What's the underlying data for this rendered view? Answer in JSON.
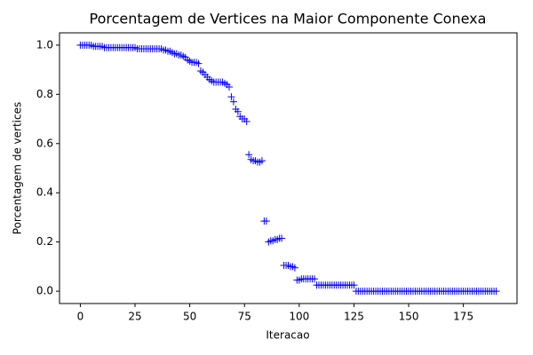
{
  "chart_data": {
    "type": "scatter",
    "title": "Porcentagem de Vertices na Maior Componente Conexa",
    "x_label": "Iteracao",
    "y_label": "Porcentagem de vertices",
    "marker": "+",
    "grid": false,
    "xlim": [
      -9.5,
      199.5
    ],
    "ylim": [
      -0.05,
      1.05
    ],
    "xticks": [
      0,
      25,
      50,
      75,
      100,
      125,
      150,
      175
    ],
    "yticks": [
      {
        "value": 0,
        "label": "0.0"
      },
      {
        "value": 0.2,
        "label": "0.2"
      },
      {
        "value": 0.4,
        "label": "0.4"
      },
      {
        "value": 0.6,
        "label": "0.6"
      },
      {
        "value": 0.8,
        "label": "0.8"
      },
      {
        "value": 1,
        "label": "1.0"
      }
    ],
    "series": [
      {
        "color": "#0000ff",
        "x": [
          0,
          1,
          2,
          3,
          4,
          5,
          6,
          7,
          8,
          9,
          10,
          11,
          12,
          13,
          14,
          15,
          16,
          17,
          18,
          19,
          20,
          21,
          22,
          23,
          24,
          25,
          26,
          27,
          28,
          29,
          30,
          31,
          32,
          33,
          34,
          35,
          36,
          37,
          38,
          39,
          40,
          41,
          42,
          43,
          44,
          45,
          46,
          47,
          48,
          49,
          50,
          51,
          52,
          53,
          54,
          55,
          56,
          57,
          58,
          59,
          60,
          61,
          62,
          63,
          64,
          65,
          66,
          67,
          68,
          69,
          70,
          71,
          72,
          73,
          74,
          75,
          76,
          77,
          78,
          79,
          80,
          81,
          82,
          83,
          84,
          85,
          86,
          87,
          88,
          89,
          90,
          91,
          92,
          93,
          94,
          95,
          96,
          97,
          98,
          99,
          100,
          101,
          102,
          103,
          104,
          105,
          106,
          107,
          108,
          109,
          110,
          111,
          112,
          113,
          114,
          115,
          116,
          117,
          118,
          119,
          120,
          121,
          122,
          123,
          124,
          125,
          126,
          127,
          128,
          129,
          130,
          131,
          132,
          133,
          134,
          135,
          136,
          137,
          138,
          139,
          140,
          141,
          142,
          143,
          144,
          145,
          146,
          147,
          148,
          149,
          150,
          151,
          152,
          153,
          154,
          155,
          156,
          157,
          158,
          159,
          160,
          161,
          162,
          163,
          164,
          165,
          166,
          167,
          168,
          169,
          170,
          171,
          172,
          173,
          174,
          175,
          176,
          177,
          178,
          179,
          180,
          181,
          182,
          183,
          184,
          185,
          186,
          187,
          188,
          189,
          190
        ],
        "values": [
          1,
          1,
          1,
          1,
          1,
          1,
          0.995,
          0.995,
          0.995,
          0.995,
          0.995,
          0.99,
          0.99,
          0.99,
          0.99,
          0.99,
          0.99,
          0.99,
          0.99,
          0.99,
          0.99,
          0.99,
          0.99,
          0.99,
          0.99,
          0.99,
          0.985,
          0.985,
          0.985,
          0.985,
          0.985,
          0.985,
          0.985,
          0.985,
          0.985,
          0.985,
          0.985,
          0.985,
          0.98,
          0.98,
          0.975,
          0.975,
          0.97,
          0.965,
          0.965,
          0.96,
          0.96,
          0.955,
          0.95,
          0.94,
          0.935,
          0.93,
          0.93,
          0.93,
          0.925,
          0.895,
          0.89,
          0.88,
          0.87,
          0.86,
          0.855,
          0.85,
          0.85,
          0.85,
          0.85,
          0.85,
          0.845,
          0.84,
          0.83,
          0.79,
          0.77,
          0.74,
          0.73,
          0.71,
          0.7,
          0.7,
          0.69,
          0.555,
          0.535,
          0.53,
          0.53,
          0.525,
          0.525,
          0.53,
          0.285,
          0.285,
          0.2,
          0.205,
          0.205,
          0.21,
          0.21,
          0.215,
          0.215,
          0.105,
          0.105,
          0.105,
          0.1,
          0.1,
          0.095,
          0.045,
          0.045,
          0.05,
          0.05,
          0.05,
          0.05,
          0.05,
          0.05,
          0.05,
          0.025,
          0.025,
          0.025,
          0.025,
          0.025,
          0.025,
          0.025,
          0.025,
          0.025,
          0.025,
          0.025,
          0.025,
          0.025,
          0.025,
          0.025,
          0.025,
          0.025,
          0.025,
          0,
          0,
          0,
          0,
          0,
          0,
          0,
          0,
          0,
          0,
          0,
          0,
          0,
          0,
          0,
          0,
          0,
          0,
          0,
          0,
          0,
          0,
          0,
          0,
          0,
          0,
          0,
          0,
          0,
          0,
          0,
          0,
          0,
          0,
          0,
          0,
          0,
          0,
          0,
          0,
          0,
          0,
          0,
          0,
          0,
          0,
          0,
          0,
          0,
          0,
          0,
          0,
          0,
          0,
          0,
          0,
          0,
          0,
          0,
          0,
          0,
          0,
          0,
          0,
          0
        ]
      }
    ]
  }
}
